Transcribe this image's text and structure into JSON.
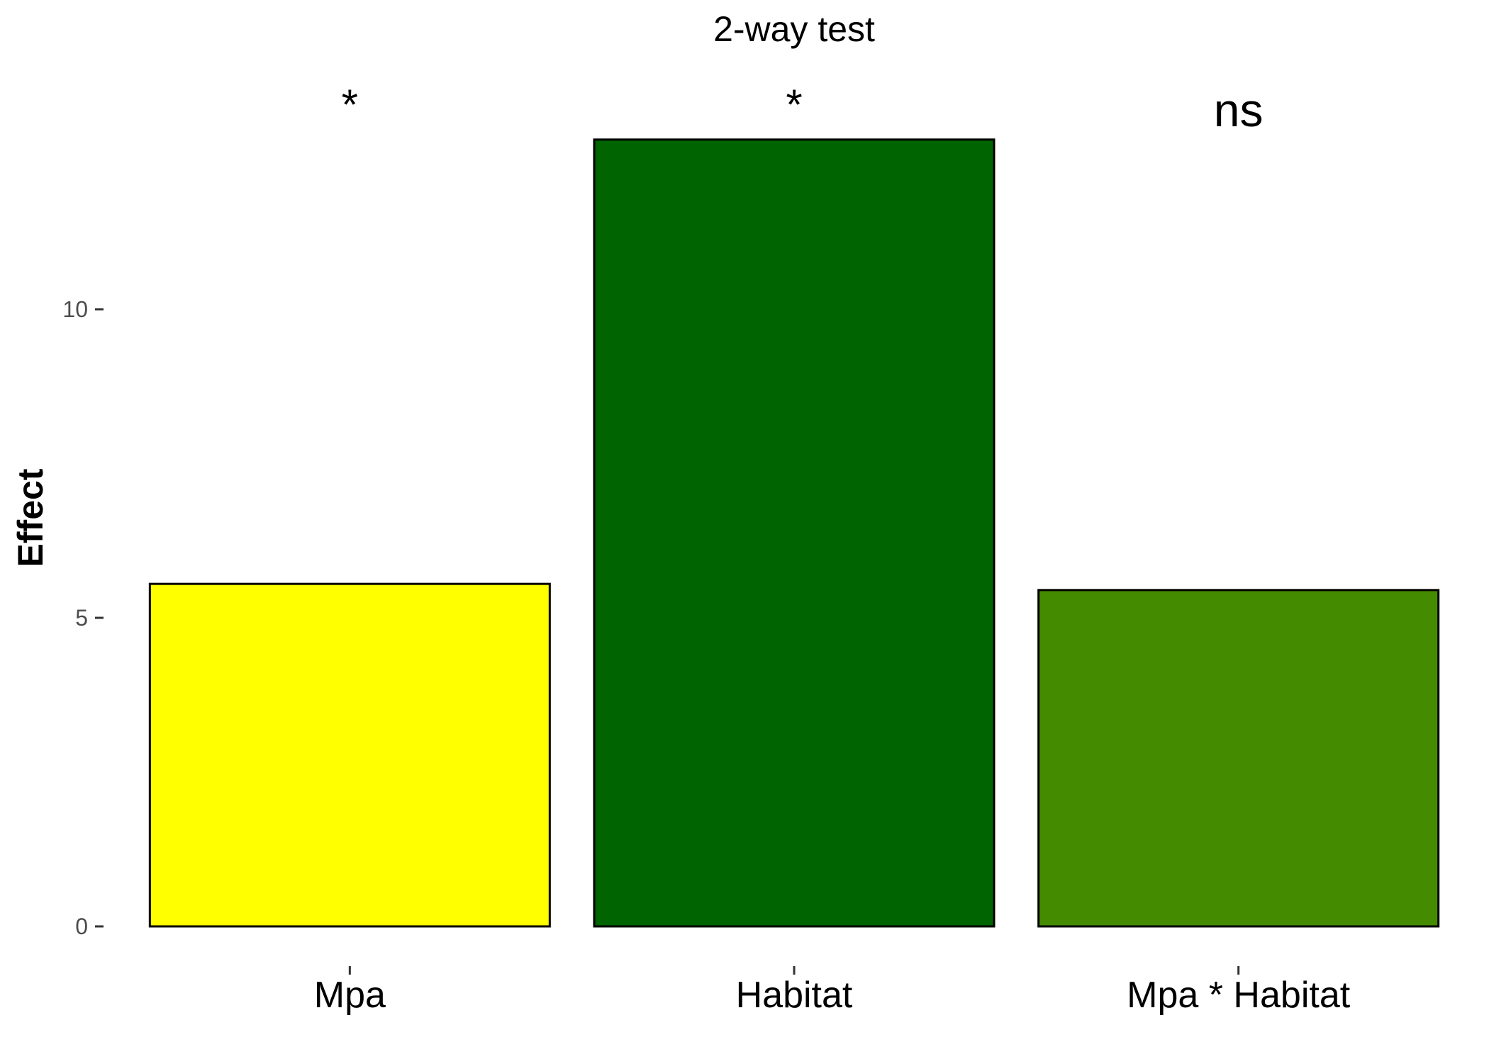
{
  "chart_data": {
    "type": "bar",
    "title": "2-way test",
    "xlabel": "",
    "ylabel": "Effect",
    "categories": [
      "Mpa",
      "Habitat",
      "Mpa * Habitat"
    ],
    "values": [
      5.55,
      12.75,
      5.45
    ],
    "colors": [
      "#ffff00",
      "#006400",
      "#458b00"
    ],
    "annotations": [
      "*",
      "*",
      "ns"
    ],
    "yticks": [
      0,
      5,
      10
    ],
    "ylim": [
      -0.6,
      14.0
    ],
    "grid": false,
    "legend": "none"
  }
}
